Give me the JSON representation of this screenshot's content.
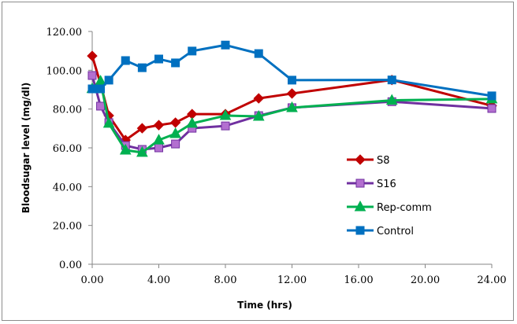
{
  "chart_data": {
    "type": "line",
    "title": "",
    "xlabel": "Time (hrs)",
    "ylabel": "Bloodsugar level (mg/dl)",
    "xlim": [
      0,
      24
    ],
    "ylim": [
      0,
      120
    ],
    "x_ticks": [
      0,
      4,
      8,
      12,
      16,
      20,
      24
    ],
    "y_ticks": [
      0,
      20,
      40,
      60,
      80,
      100,
      120
    ],
    "x_tick_labels": [
      "0.00",
      "4.00",
      "8.00",
      "12.00",
      "16.00",
      "20.00",
      "24.00"
    ],
    "y_tick_labels": [
      "0.00",
      "20.00",
      "40.00",
      "60.00",
      "80.00",
      "100.00",
      "120.00"
    ],
    "grid": false,
    "legend_position": "right",
    "x": [
      0,
      0.5,
      1,
      2,
      3,
      4,
      5,
      6,
      8,
      10,
      12,
      18,
      24
    ],
    "series": [
      {
        "name": "S8",
        "color": "#c00000",
        "marker": "diamond",
        "values": [
          107.4,
          93.0,
          76.6,
          64.0,
          70.1,
          71.7,
          73.0,
          77.4,
          77.4,
          85.5,
          88.0,
          95.0,
          81.7
        ]
      },
      {
        "name": "S16",
        "color": "#7030a0",
        "marker_fill": "#b36fd0",
        "marker": "square",
        "values": [
          97.3,
          81.5,
          73.0,
          61.2,
          59.2,
          60.0,
          62.0,
          70.1,
          71.3,
          76.6,
          80.7,
          83.8,
          80.3
        ]
      },
      {
        "name": "Rep-comm",
        "color": "#00b050",
        "marker": "triangle",
        "values": [
          90.5,
          94.4,
          72.6,
          58.8,
          57.6,
          64.0,
          67.3,
          72.6,
          76.6,
          76.2,
          80.7,
          84.5,
          85.2
        ]
      },
      {
        "name": "Control",
        "color": "#0070c0",
        "marker": "square",
        "values": [
          90.4,
          90.4,
          94.9,
          105.0,
          101.3,
          105.8,
          103.8,
          109.9,
          113.0,
          108.6,
          94.9,
          95.0,
          86.8
        ]
      }
    ]
  }
}
